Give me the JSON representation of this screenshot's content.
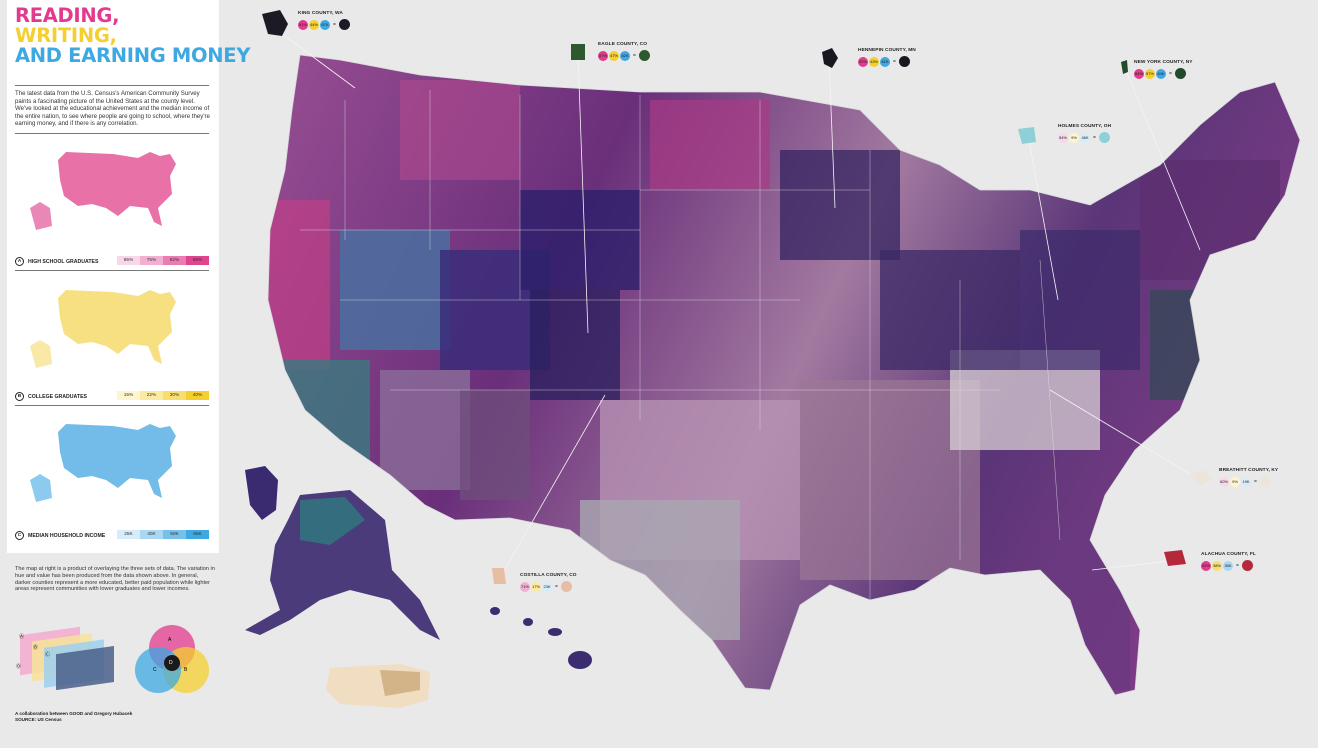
{
  "title": {
    "line1": "READING,",
    "line2": "WRITING,",
    "line3": "AND EARNING MONEY"
  },
  "intro": "The latest data from the U.S. Census's American Community Survey paints a fascinating picture of the United States at the county level. We've looked at the educational achievement and the median income of the entire nation, to see where people are going to school, where they're earning money, and if there is any correlation.",
  "legends": [
    {
      "letter": "A",
      "label": "HIGH SCHOOL GRADUATES",
      "ticks": [
        "65%",
        "75%",
        "82%",
        "88%"
      ],
      "colors": [
        "#f7d7e8",
        "#f2afd0",
        "#ea7bb3",
        "#e0448f"
      ],
      "mapColor": "#e5629f"
    },
    {
      "letter": "B",
      "label": "COLLEGE GRADUATES",
      "ticks": [
        "15%",
        "22%",
        "30%",
        "40%"
      ],
      "colors": [
        "#fdf5cd",
        "#fbeaa0",
        "#f8dd6f",
        "#f4cf2f"
      ],
      "mapColor": "#f6de7a"
    },
    {
      "letter": "C",
      "label": "MEDIAN HOUSEHOLD INCOME",
      "ticks": [
        "25K",
        "40K",
        "50K",
        "65K"
      ],
      "colors": [
        "#d6ecfa",
        "#aad8f4",
        "#76c0ec",
        "#3ea8e3"
      ],
      "mapColor": "#6cb8e8"
    }
  ],
  "description": "The map at right is a product of overlaying the three sets of data. The variation in hue and value has been produced from the data shown above. In general, darker counties represent a more educated, better paid population while lighter areas represent communities with lower graduates and lower incomes.",
  "venn_labels": [
    "A",
    "B",
    "C",
    "D"
  ],
  "credit": {
    "line1": "A collaboration between GOOD and Gregory Hubacek",
    "line2": "SOURCE: US Census"
  },
  "counties": [
    {
      "name": "KING COUNTY, WA",
      "values": [
        "91%",
        "44%",
        "67K"
      ],
      "result": "#1c1a24"
    },
    {
      "name": "EAGLE COUNTY, CO",
      "values": [
        "87%",
        "47%",
        "62K"
      ],
      "result": "#2c5a2e"
    },
    {
      "name": "HENNEPIN COUNTY, MN",
      "values": [
        "92%",
        "43%",
        "61K"
      ],
      "result": "#1a1720"
    },
    {
      "name": "NEW YORK COUNTY, NY",
      "values": [
        "84%",
        "57%",
        "64K"
      ],
      "result": "#244a2c"
    },
    {
      "name": "HOLMES COUNTY, OH",
      "values": [
        "54%",
        "9%",
        "46K"
      ],
      "result": "#8fd0d8"
    },
    {
      "name": "BREATHITT COUNTY, KY",
      "values": [
        "60%",
        "9%",
        "19K"
      ],
      "result": "#ece6da"
    },
    {
      "name": "ALACHUA COUNTY, FL",
      "values": [
        "92%",
        "38%",
        "35K"
      ],
      "result": "#b5283c"
    },
    {
      "name": "COSTILLA COUNTY, CO",
      "values": [
        "71%",
        "17%",
        "23K"
      ],
      "result": "#e7bda4"
    }
  ],
  "colors": {
    "pink": "#e23a8e",
    "yellow": "#f4cf2f",
    "blue": "#3ea8e3",
    "background": "#e9e9ea"
  }
}
